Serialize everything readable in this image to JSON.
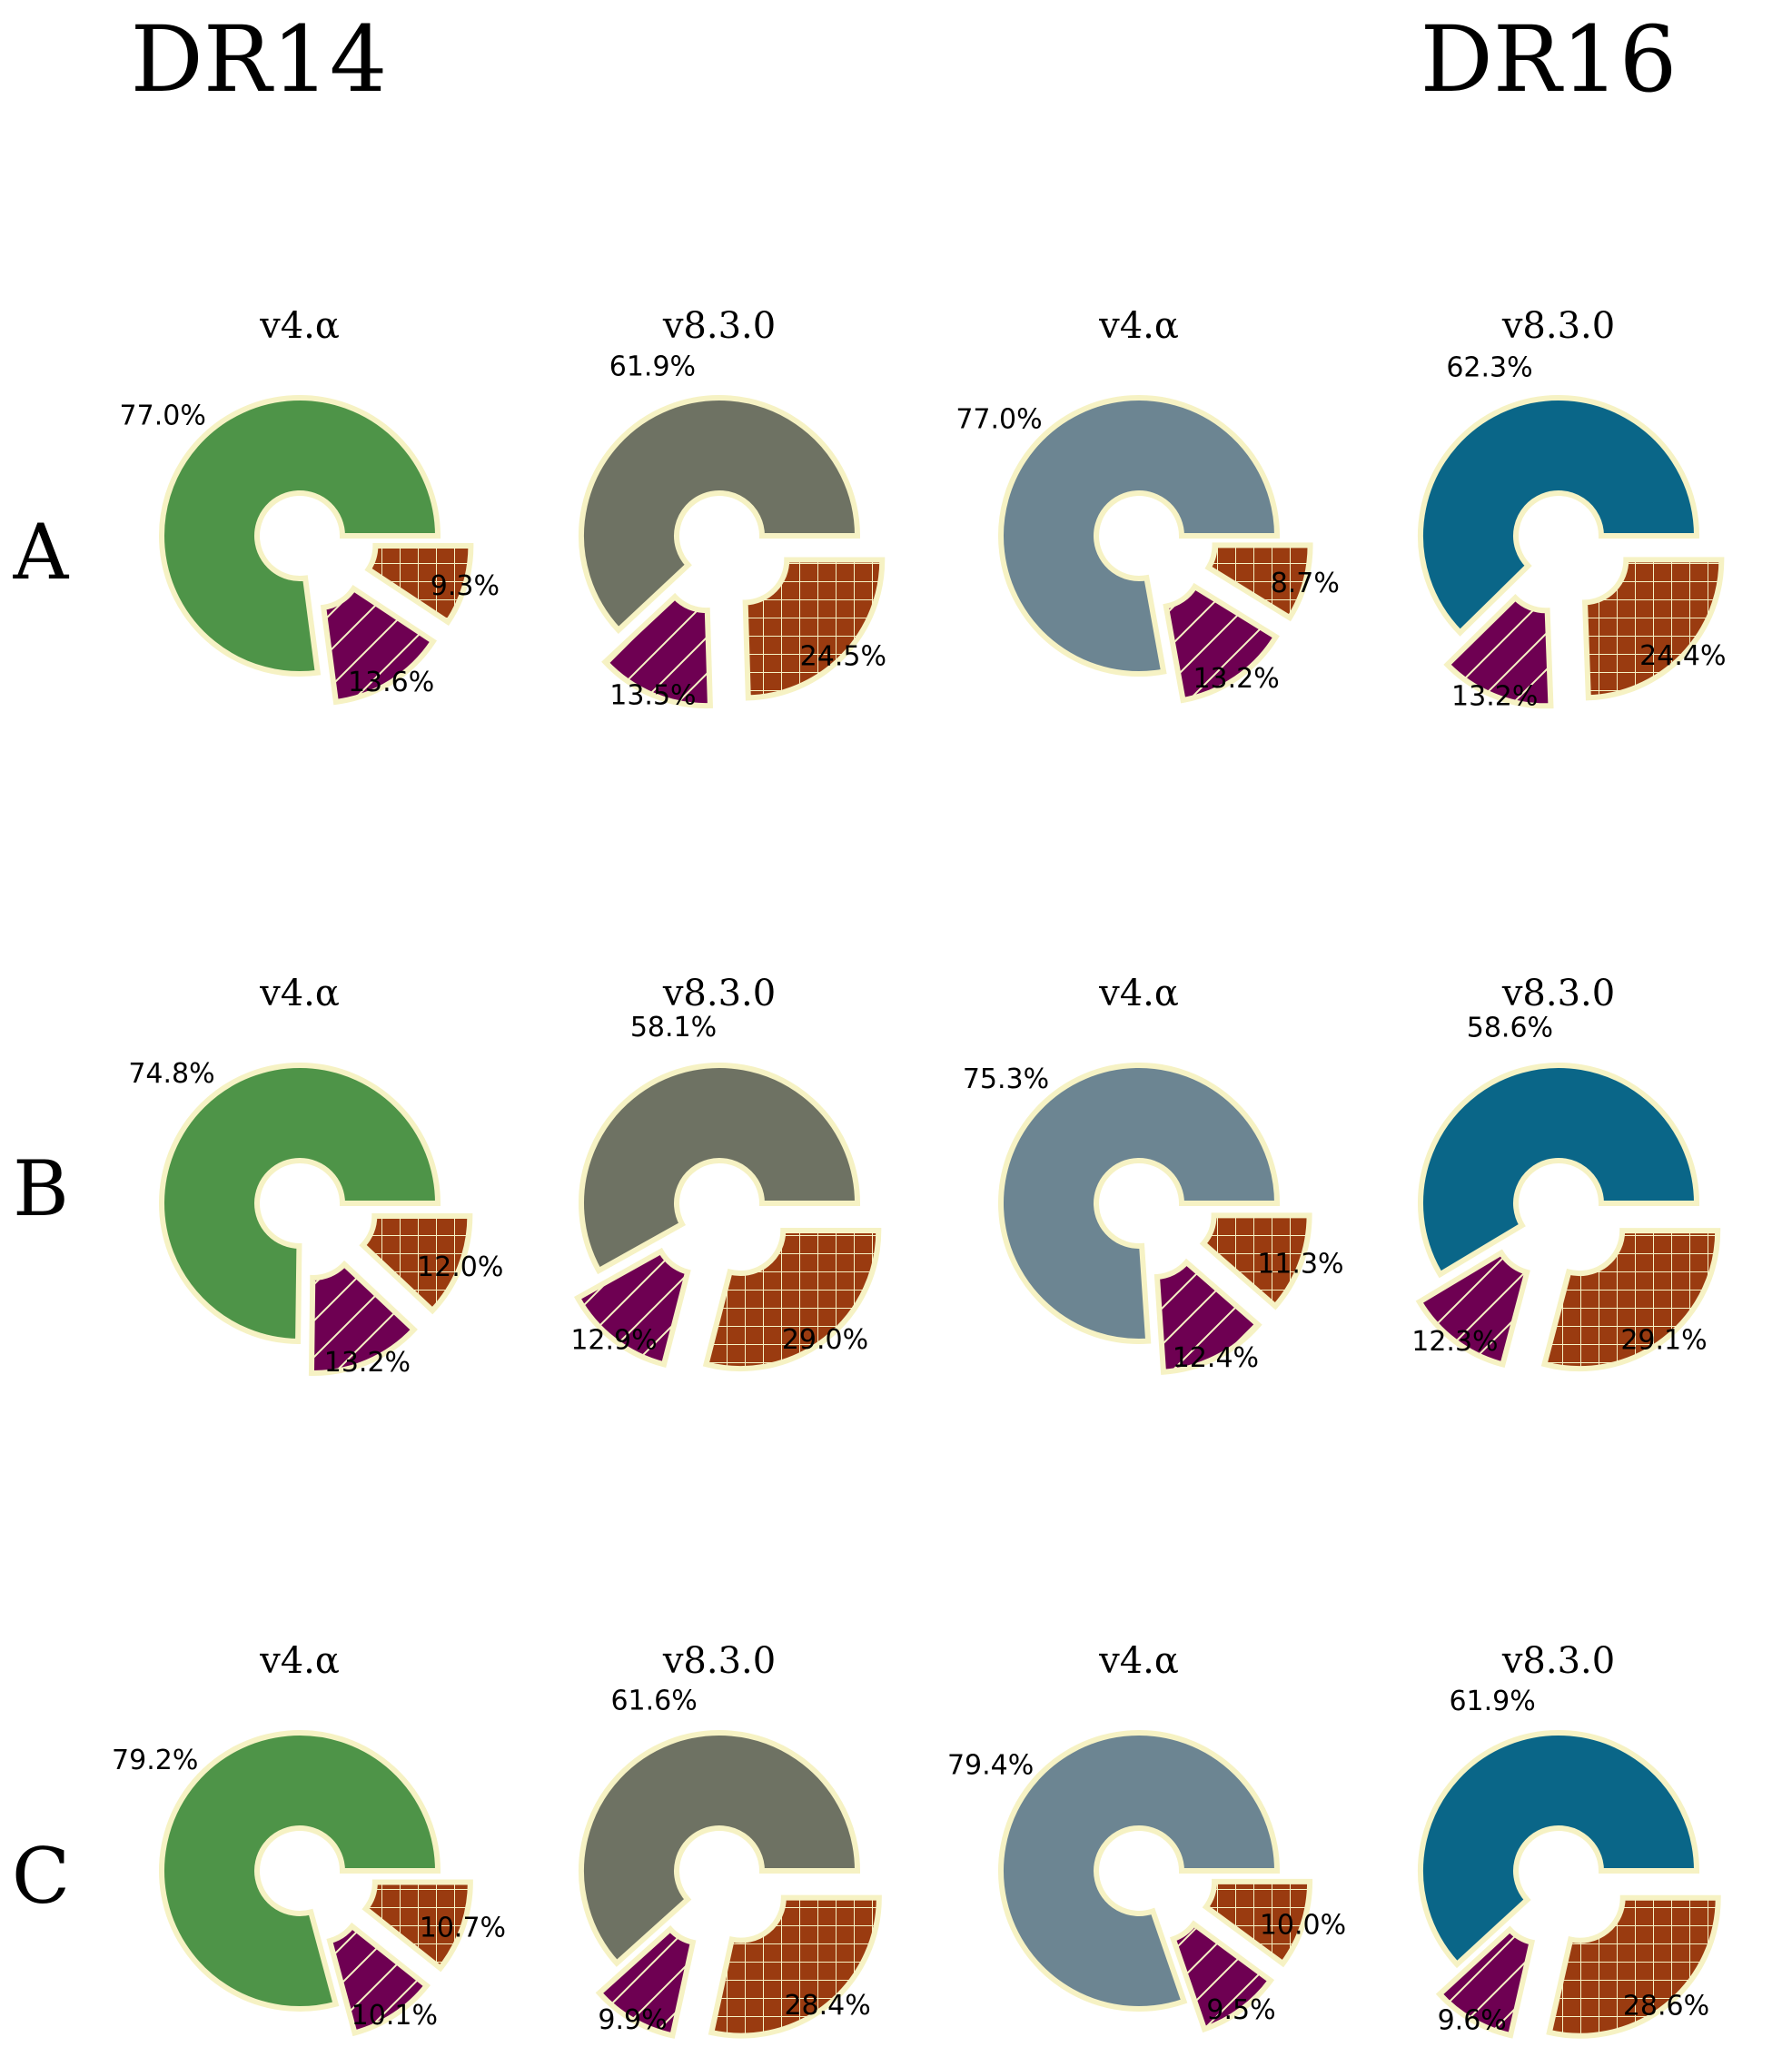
{
  "figure": {
    "column_titles": [
      "DR14",
      "DR16"
    ],
    "row_labels": [
      "A",
      "B",
      "C"
    ],
    "edge_color": "#f6f2c4",
    "hatch_line_color": "#f6f2c4",
    "secondary_colors": [
      "#6e0052",
      "#9a3b10"
    ],
    "secondary_hatch": [
      "diagonal",
      "grid"
    ]
  },
  "chart_data": [
    {
      "type": "pie",
      "style": "exploded-donut",
      "row": "A",
      "column": "DR14",
      "title": "v4.α",
      "color": "#4e9448",
      "slices": [
        {
          "value": 77.0,
          "label": "77.0%"
        },
        {
          "value": 13.6,
          "label": "13.6%"
        },
        {
          "value": 9.3,
          "label": "9.3%"
        }
      ]
    },
    {
      "type": "pie",
      "style": "exploded-donut",
      "row": "A",
      "column": "DR14",
      "title": "v8.3.0",
      "color": "#6e7263",
      "slices": [
        {
          "value": 61.9,
          "label": "61.9%"
        },
        {
          "value": 13.5,
          "label": "13.5%"
        },
        {
          "value": 24.5,
          "label": "24.5%"
        }
      ]
    },
    {
      "type": "pie",
      "style": "exploded-donut",
      "row": "A",
      "column": "DR16",
      "title": "v4.α",
      "color": "#6c8592",
      "slices": [
        {
          "value": 77.0,
          "label": "77.0%"
        },
        {
          "value": 13.2,
          "label": "13.2%"
        },
        {
          "value": 8.7,
          "label": "8.7%"
        }
      ]
    },
    {
      "type": "pie",
      "style": "exploded-donut",
      "row": "A",
      "column": "DR16",
      "title": "v8.3.0",
      "color": "#0a6688",
      "slices": [
        {
          "value": 62.3,
          "label": "62.3%"
        },
        {
          "value": 13.2,
          "label": "13.2%"
        },
        {
          "value": 24.4,
          "label": "24.4%"
        }
      ]
    },
    {
      "type": "pie",
      "style": "exploded-donut",
      "row": "B",
      "column": "DR14",
      "title": "v4.α",
      "color": "#4e9448",
      "slices": [
        {
          "value": 74.8,
          "label": "74.8%"
        },
        {
          "value": 13.2,
          "label": "13.2%"
        },
        {
          "value": 12.0,
          "label": "12.0%"
        }
      ]
    },
    {
      "type": "pie",
      "style": "exploded-donut",
      "row": "B",
      "column": "DR14",
      "title": "v8.3.0",
      "color": "#6e7263",
      "slices": [
        {
          "value": 58.1,
          "label": "58.1%"
        },
        {
          "value": 12.9,
          "label": "12.9%"
        },
        {
          "value": 29.0,
          "label": "29.0%"
        }
      ]
    },
    {
      "type": "pie",
      "style": "exploded-donut",
      "row": "B",
      "column": "DR16",
      "title": "v4.α",
      "color": "#6c8592",
      "slices": [
        {
          "value": 75.3,
          "label": "75.3%"
        },
        {
          "value": 12.4,
          "label": "12.4%"
        },
        {
          "value": 11.3,
          "label": "11.3%"
        }
      ]
    },
    {
      "type": "pie",
      "style": "exploded-donut",
      "row": "B",
      "column": "DR16",
      "title": "v8.3.0",
      "color": "#0a6688",
      "slices": [
        {
          "value": 58.6,
          "label": "58.6%"
        },
        {
          "value": 12.3,
          "label": "12.3%"
        },
        {
          "value": 29.1,
          "label": "29.1%"
        }
      ]
    },
    {
      "type": "pie",
      "style": "exploded-donut",
      "row": "C",
      "column": "DR14",
      "title": "v4.α",
      "color": "#4e9448",
      "slices": [
        {
          "value": 79.2,
          "label": "79.2%"
        },
        {
          "value": 10.1,
          "label": "10.1%"
        },
        {
          "value": 10.7,
          "label": "10.7%"
        }
      ]
    },
    {
      "type": "pie",
      "style": "exploded-donut",
      "row": "C",
      "column": "DR14",
      "title": "v8.3.0",
      "color": "#6e7263",
      "slices": [
        {
          "value": 61.6,
          "label": "61.6%"
        },
        {
          "value": 9.9,
          "label": "9.9%"
        },
        {
          "value": 28.4,
          "label": "28.4%"
        }
      ]
    },
    {
      "type": "pie",
      "style": "exploded-donut",
      "row": "C",
      "column": "DR16",
      "title": "v4.α",
      "color": "#6c8592",
      "slices": [
        {
          "value": 79.4,
          "label": "79.4%"
        },
        {
          "value": 9.5,
          "label": "9.5%"
        },
        {
          "value": 10.0,
          "label": "10.0%"
        }
      ]
    },
    {
      "type": "pie",
      "style": "exploded-donut",
      "row": "C",
      "column": "DR16",
      "title": "v8.3.0",
      "color": "#0a6688",
      "slices": [
        {
          "value": 61.9,
          "label": "61.9%"
        },
        {
          "value": 9.6,
          "label": "9.6%"
        },
        {
          "value": 28.6,
          "label": "28.6%"
        }
      ]
    }
  ]
}
